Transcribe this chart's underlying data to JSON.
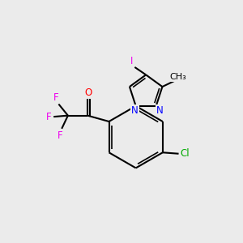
{
  "background_color": "#ebebeb",
  "bond_color": "#000000",
  "atom_colors": {
    "N": "#0000ff",
    "O": "#ff0000",
    "F": "#ee00ee",
    "Cl": "#00aa00",
    "I": "#ee00ee"
  },
  "lw": 1.5,
  "lw_inner": 1.2
}
